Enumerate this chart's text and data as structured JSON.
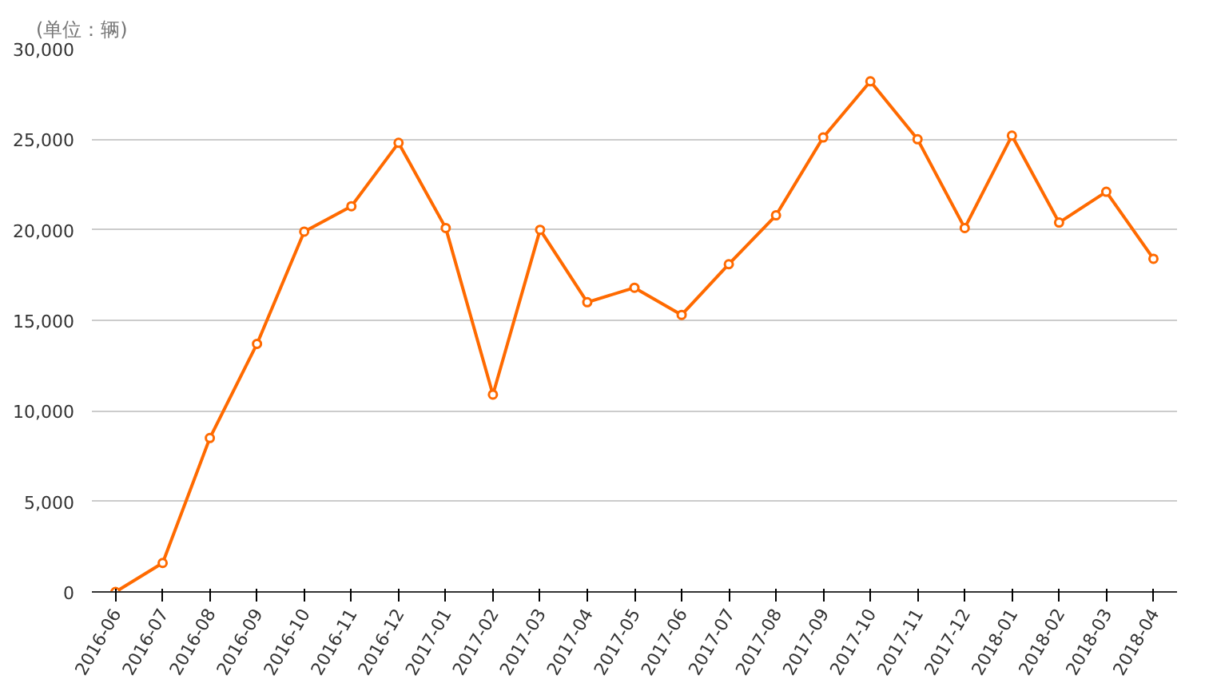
{
  "chart_data": {
    "type": "line",
    "categories": [
      "2016-06",
      "2016-07",
      "2016-08",
      "2016-09",
      "2016-10",
      "2016-11",
      "2016-12",
      "2017-01",
      "2017-02",
      "2017-03",
      "2017-04",
      "2017-05",
      "2017-06",
      "2017-07",
      "2017-08",
      "2017-09",
      "2017-10",
      "2017-11",
      "2017-12",
      "2018-01",
      "2018-02",
      "2018-03",
      "2018-04"
    ],
    "series": [
      {
        "color": "#ff6a00",
        "values": [
          0,
          1600,
          8500,
          13700,
          19900,
          21300,
          24800,
          20100,
          10900,
          20000,
          16000,
          16800,
          15300,
          18100,
          20800,
          25100,
          28200,
          25000,
          20100,
          25200,
          20400,
          22100,
          18400
        ]
      }
    ],
    "ylim": [
      0,
      30000
    ],
    "yticks": [
      {
        "value": 0,
        "label": "0"
      },
      {
        "value": 5000,
        "label": "5,000"
      },
      {
        "value": 10000,
        "label": "10,000"
      },
      {
        "value": 15000,
        "label": "15,000"
      },
      {
        "value": 20000,
        "label": "20,000"
      },
      {
        "value": 25000,
        "label": "25,000"
      },
      {
        "value": 30000,
        "label": "30,000"
      }
    ],
    "grid": "y",
    "marker": "circle",
    "line_style": "solid",
    "annotations": [
      "(单位：辆)"
    ]
  }
}
